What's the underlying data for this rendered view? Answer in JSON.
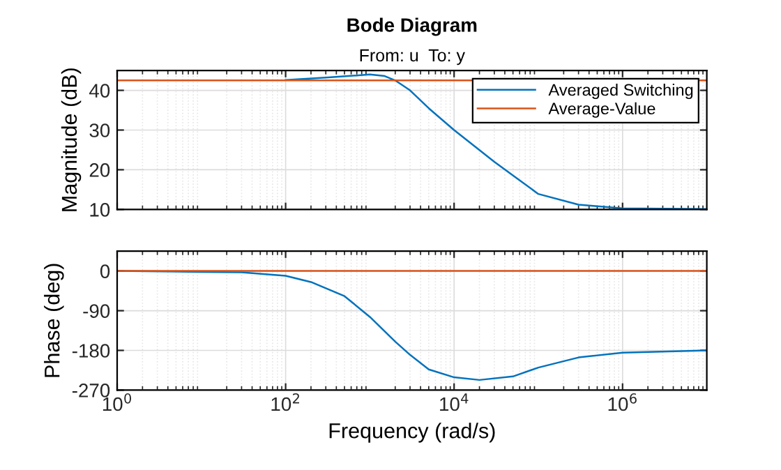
{
  "chart_data": [
    {
      "type": "line",
      "title": "Bode Diagram",
      "subtitle": "From: u  To: y",
      "ylabel": "Magnitude (dB)",
      "log": "x",
      "xlim": [
        1,
        10000000
      ],
      "xticks": [
        {
          "value": 1,
          "label": null
        },
        {
          "value": 100,
          "label": null
        },
        {
          "value": 10000,
          "label": null
        },
        {
          "value": 1000000,
          "label": null
        }
      ],
      "ylim": [
        10,
        45
      ],
      "yticks": [
        10,
        20,
        30,
        40
      ],
      "grid": true,
      "legend": "top right",
      "tick_labels": "y",
      "series": [
        {
          "name": "Averaged Switching",
          "color": "#0072bd",
          "x": [
            100,
            300,
            1000,
            1500,
            2000,
            3000,
            5000,
            10000,
            30000,
            100000,
            300000,
            1000000,
            10000000
          ],
          "values": [
            42.6,
            43.2,
            44,
            43.6,
            42.5,
            40,
            35.5,
            30,
            22,
            13.9,
            11.2,
            10.3,
            10.1
          ]
        },
        {
          "name": "Average-Value",
          "color": "#d95319",
          "x": [
            1,
            10000000
          ],
          "values": [
            42.5,
            42.5
          ]
        }
      ]
    },
    {
      "type": "line",
      "xlabel": "Frequency (rad/s)",
      "ylabel": "Phase (deg)",
      "log": "x",
      "xlim": [
        1,
        10000000
      ],
      "xticks": [
        {
          "value": 1,
          "label": "10$^{0}$"
        },
        {
          "value": 100,
          "label": "10$^{2}$"
        },
        {
          "value": 10000,
          "label": "10$^{4}$"
        },
        {
          "value": 1000000,
          "label": "10$^{6}$"
        }
      ],
      "ylim": [
        -270,
        45
      ],
      "yticks": [
        {
          "value": 0,
          "label": "0"
        },
        {
          "value": -90,
          "label": "-90"
        },
        {
          "value": -180,
          "label": "-180"
        },
        {
          "value": -270,
          "label": "-270"
        }
      ],
      "grid": true,
      "series": [
        {
          "color": "#0072bd",
          "x": [
            1,
            10,
            30,
            100,
            200,
            500,
            1000,
            2000,
            3000,
            5000,
            10000,
            20000,
            50000,
            100000,
            300000,
            1000000,
            10000000
          ],
          "values": [
            0,
            -2,
            -3,
            -11,
            -25,
            -57,
            -104,
            -160,
            -190,
            -223,
            -241,
            -247,
            -239,
            -219,
            -196,
            -185,
            -180
          ]
        },
        {
          "color": "#d95319",
          "x": [
            1,
            10000000
          ],
          "values": [
            0,
            0
          ]
        }
      ]
    }
  ]
}
